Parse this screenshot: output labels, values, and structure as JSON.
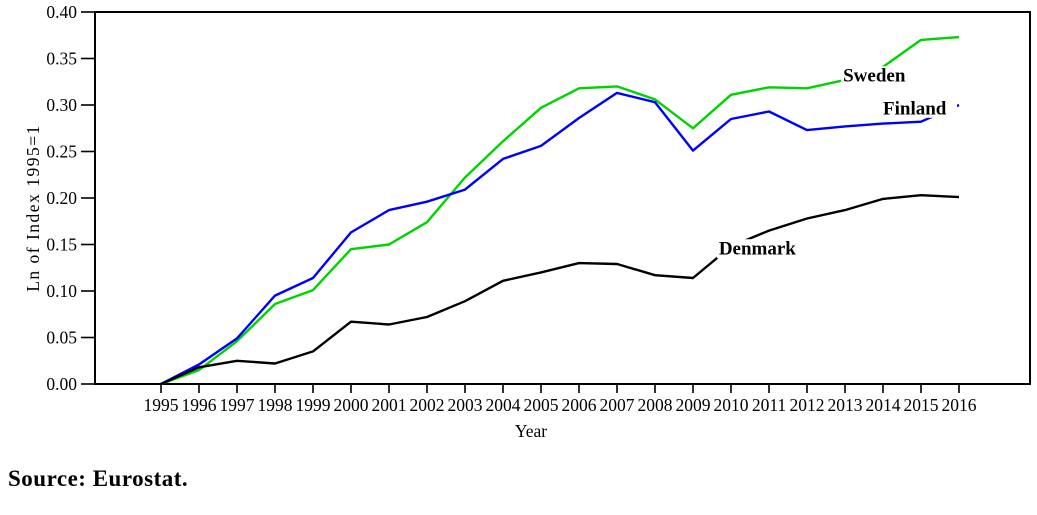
{
  "figure": {
    "source_note": "Source: Eurostat."
  },
  "chart_data": {
    "type": "line",
    "title": "",
    "xlabel": "Year",
    "ylabel": "Ln of Index 1995=1",
    "x": [
      1995,
      1996,
      1997,
      1998,
      1999,
      2000,
      2001,
      2002,
      2003,
      2004,
      2005,
      2006,
      2007,
      2008,
      2009,
      2010,
      2011,
      2012,
      2013,
      2014,
      2015,
      2016
    ],
    "ylim": [
      0.0,
      0.4
    ],
    "ytick_step": 0.05,
    "grid": false,
    "legend": "inline-labels",
    "frame": true,
    "axis_color": "#000000",
    "series": [
      {
        "name": "Sweden",
        "color": "#00d400",
        "values": [
          0.0,
          0.015,
          0.046,
          0.086,
          0.101,
          0.145,
          0.15,
          0.174,
          0.222,
          0.261,
          0.297,
          0.318,
          0.32,
          0.306,
          0.275,
          0.311,
          0.319,
          0.318,
          0.327,
          0.341,
          0.37,
          0.373
        ]
      },
      {
        "name": "Finland",
        "color": "#0000ff",
        "values": [
          0.0,
          0.021,
          0.049,
          0.095,
          0.114,
          0.163,
          0.187,
          0.196,
          0.209,
          0.242,
          0.256,
          0.286,
          0.313,
          0.303,
          0.251,
          0.285,
          0.293,
          0.273,
          0.277,
          0.28,
          0.282,
          0.3
        ]
      },
      {
        "name": "Denmark",
        "color": "#000000",
        "values": [
          0.0,
          0.018,
          0.025,
          0.022,
          0.035,
          0.067,
          0.064,
          0.072,
          0.089,
          0.111,
          0.12,
          0.13,
          0.129,
          0.117,
          0.114,
          0.148,
          0.165,
          0.178,
          0.187,
          0.199,
          0.203,
          0.201
        ]
      }
    ],
    "annotations": [
      {
        "text": "Sweden",
        "year": 2012.95,
        "value": 0.332
      },
      {
        "text": "Finland",
        "year": 2014.0,
        "value": 0.297
      },
      {
        "text": "Denmark",
        "year": 2009.68,
        "value": 0.146
      }
    ]
  }
}
